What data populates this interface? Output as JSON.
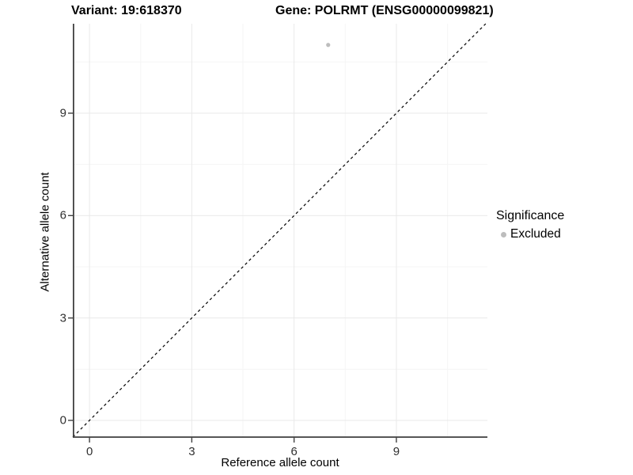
{
  "title": {
    "variant": "Variant: 19:618370",
    "gene": "Gene: POLRMT (ENSG00000099821)"
  },
  "axes": {
    "x_label": "Reference allele count",
    "y_label": "Alternative allele count"
  },
  "legend": {
    "title": "Significance",
    "items": [
      {
        "label": "Excluded",
        "color": "#bdbdbd"
      }
    ]
  },
  "chart_data": {
    "type": "scatter",
    "title": "Variant: 19:618370   Gene: POLRMT (ENSG00000099821)",
    "xlabel": "Reference allele count",
    "ylabel": "Alternative allele count",
    "xlim": [
      -0.49,
      11.67
    ],
    "ylim": [
      -0.51,
      11.62
    ],
    "x_ticks": [
      0,
      3,
      6,
      9
    ],
    "y_ticks": [
      0,
      3,
      6,
      9
    ],
    "x_minor_ticks": [
      1.5,
      4.5,
      7.5,
      10.5
    ],
    "y_minor_ticks": [
      1.5,
      4.5,
      7.5,
      10.5
    ],
    "grid": true,
    "legend_position": "right",
    "series": [
      {
        "name": "Excluded",
        "color": "#bdbdbd",
        "points": [
          {
            "x": 7,
            "y": 11
          }
        ]
      }
    ],
    "reference_line": {
      "type": "identity",
      "slope": 1,
      "intercept": 0,
      "style": "dashed",
      "color": "#000000"
    },
    "colors": {
      "grid_major": "#e9e9e9",
      "grid_minor": "#f5f5f5",
      "axis_line": "#404040",
      "tick_mark": "#404040",
      "tick_text": "#303030",
      "point": "#bdbdbd"
    }
  }
}
